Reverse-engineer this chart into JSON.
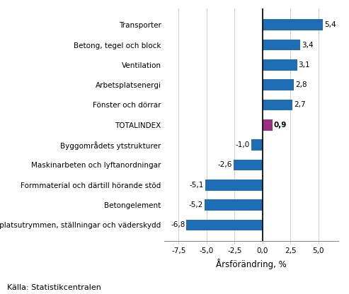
{
  "categories": [
    "Arbetsplatsutrymmen, ställningar och väderskydd",
    "Betongelement",
    "Formmaterial och därtill hörande stöd",
    "Maskinarbeten och lyftanordningar",
    "Byggområdets ytstrukturer",
    "TOTALINDEX",
    "Fönster och dörrar",
    "Arbetsplatsenergi",
    "Ventilation",
    "Betong, tegel och block",
    "Transporter"
  ],
  "values": [
    -6.8,
    -5.2,
    -5.1,
    -2.6,
    -1.0,
    0.9,
    2.7,
    2.8,
    3.1,
    3.4,
    5.4
  ],
  "colors": [
    "#1f6eb5",
    "#1f6eb5",
    "#1f6eb5",
    "#1f6eb5",
    "#1f6eb5",
    "#9b2d82",
    "#1f6eb5",
    "#1f6eb5",
    "#1f6eb5",
    "#1f6eb5",
    "#1f6eb5"
  ],
  "xlabel": "Årsförändring, %",
  "source": "Källa: Statistikcentralen",
  "xlim": [
    -8.8,
    6.8
  ],
  "xticks": [
    -7.5,
    -5.0,
    -2.5,
    0.0,
    2.5,
    5.0
  ],
  "xtick_labels": [
    "-7,5",
    "-5,0",
    "-2,5",
    "0,0",
    "2,5",
    "5,0"
  ],
  "bar_height": 0.55,
  "label_fontsize": 7.5,
  "value_fontsize": 7.5,
  "xlabel_fontsize": 8.5,
  "source_fontsize": 8.0,
  "totalindex_idx": 5
}
